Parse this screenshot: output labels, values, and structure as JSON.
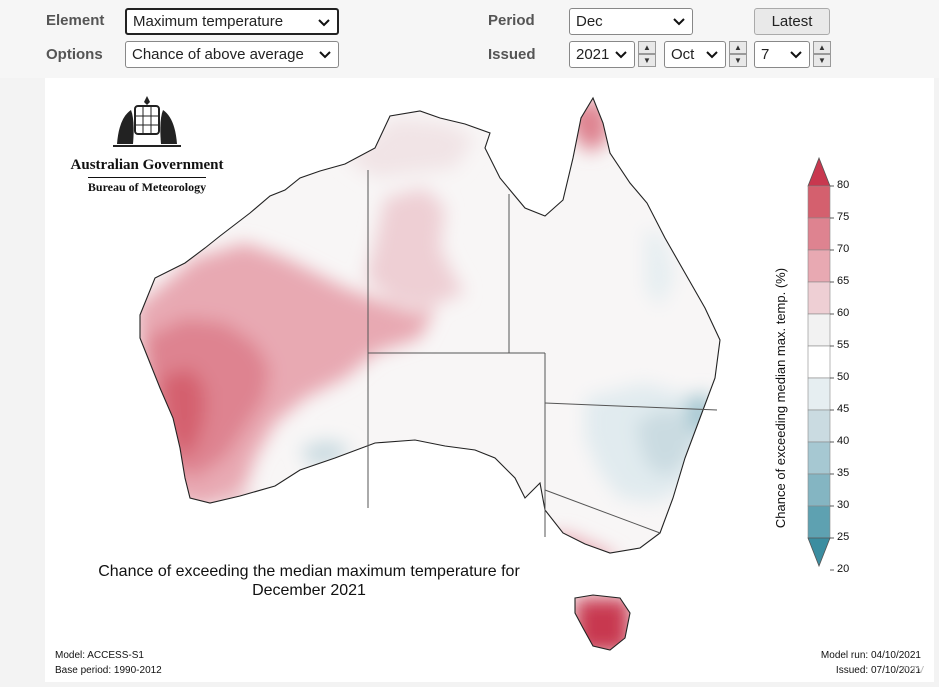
{
  "controls": {
    "element_label": "Element",
    "element_value": "Maximum temperature",
    "options_label": "Options",
    "options_value": "Chance of above average",
    "period_label": "Period",
    "period_value": "Dec",
    "issued_label": "Issued",
    "issued_year": "2021",
    "issued_month": "Oct",
    "issued_day": "7",
    "latest_label": "Latest"
  },
  "logo": {
    "government": "Australian Government",
    "bureau": "Bureau of Meteorology"
  },
  "map": {
    "title_line1": "Chance of exceeding the median maximum temperature for",
    "title_line2": "December 2021",
    "model": "Model: ACCESS-S1",
    "base_period": "Base period: 1990-2012",
    "model_run": "Model run: 04/10/2021",
    "issued": "Issued: 07/10/2021"
  },
  "colorbar": {
    "title": "Chance of exceeding median max. temp. (%)",
    "ticks": [
      "80",
      "75",
      "70",
      "65",
      "60",
      "55",
      "50",
      "45",
      "40",
      "35",
      "30",
      "25",
      "20"
    ],
    "colors": [
      "#c8384f",
      "#d4606e",
      "#de8390",
      "#e8a9b2",
      "#eecfd4",
      "#f2f2f2",
      "#ffffff",
      "#e6eef1",
      "#cadbe1",
      "#a6c8d2",
      "#84b5c2",
      "#5ea1b1",
      "#3b8da0"
    ]
  },
  "watermark": "7’ TV"
}
